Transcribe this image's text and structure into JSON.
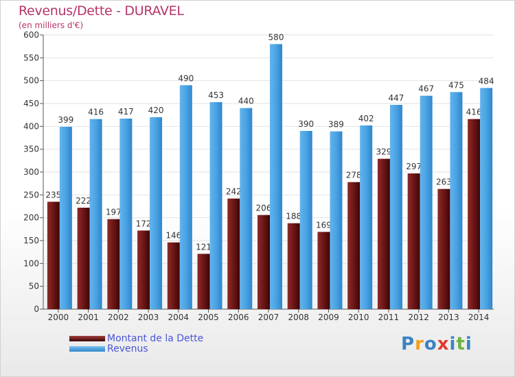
{
  "chart_data": {
    "type": "bar",
    "title": "Revenus/Dette - DURAVEL",
    "subtitle": "(en milliers d'€)",
    "categories": [
      "2000",
      "2001",
      "2002",
      "2003",
      "2004",
      "2005",
      "2006",
      "2007",
      "2008",
      "2009",
      "2010",
      "2011",
      "2012",
      "2013",
      "2014"
    ],
    "series": [
      {
        "name": "Montant de la Dette",
        "values": [
          235,
          222,
          197,
          172,
          146,
          121,
          242,
          206,
          188,
          169,
          278,
          329,
          297,
          263,
          416
        ],
        "color": "#6b1a1a"
      },
      {
        "name": "Revenus",
        "values": [
          399,
          416,
          417,
          420,
          490,
          453,
          440,
          580,
          390,
          389,
          402,
          447,
          467,
          475,
          484
        ],
        "color": "#4aa3e3"
      }
    ],
    "xlabel": "",
    "ylabel": "",
    "ylim": [
      0,
      600
    ],
    "yticks": [
      0,
      50,
      100,
      150,
      200,
      250,
      300,
      350,
      400,
      450,
      500,
      550,
      600
    ],
    "grid": true,
    "legend_position": "bottom-left"
  },
  "logo": {
    "letters": [
      "P",
      "r",
      "o",
      "x",
      "i",
      "t",
      "i"
    ],
    "colors": [
      "#3b82c4",
      "#f2a019",
      "#3b82c4",
      "#e03a2f",
      "#3b82c4",
      "#6cb33e",
      "#3b82c4"
    ]
  }
}
